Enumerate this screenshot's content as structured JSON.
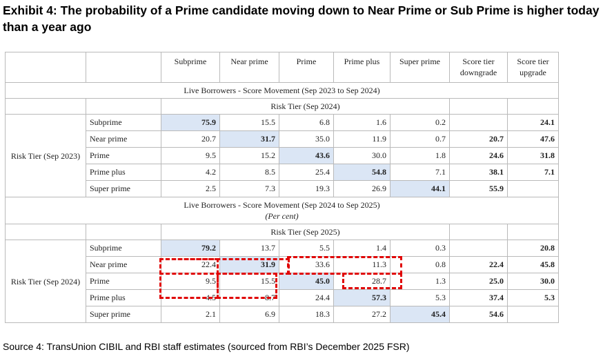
{
  "title": "Exhibit 4: The probability of a Prime candidate moving down to Near Prime or Sub Prime is higher today than a year ago",
  "columns": [
    "Subprime",
    "Near prime",
    "Prime",
    "Prime plus",
    "Super prime",
    "Score tier downgrade",
    "Score tier upgrade"
  ],
  "section1": {
    "title": "Live Borrowers - Score Movement (Sep 2023 to Sep 2024)",
    "risk_tier_cols": "Risk Tier (Sep 2024)",
    "risk_tier_rows": "Risk Tier (Sep 2023)",
    "rows": [
      {
        "label": "Subprime",
        "values": [
          "75.9",
          "15.5",
          "6.8",
          "1.6",
          "0.2"
        ],
        "downgrade": "",
        "upgrade": "24.1"
      },
      {
        "label": "Near prime",
        "values": [
          "20.7",
          "31.7",
          "35.0",
          "11.9",
          "0.7"
        ],
        "downgrade": "20.7",
        "upgrade": "47.6"
      },
      {
        "label": "Prime",
        "values": [
          "9.5",
          "15.2",
          "43.6",
          "30.0",
          "1.8"
        ],
        "downgrade": "24.6",
        "upgrade": "31.8"
      },
      {
        "label": "Prime plus",
        "values": [
          "4.2",
          "8.5",
          "25.4",
          "54.8",
          "7.1"
        ],
        "downgrade": "38.1",
        "upgrade": "7.1"
      },
      {
        "label": "Super prime",
        "values": [
          "2.5",
          "7.3",
          "19.3",
          "26.9",
          "44.1"
        ],
        "downgrade": "55.9",
        "upgrade": ""
      }
    ]
  },
  "section2": {
    "title": "Live Borrowers - Score Movement (Sep 2024 to Sep 2025)",
    "unit": "(Per cent)",
    "risk_tier_cols": "Risk Tier (Sep 2025)",
    "risk_tier_rows": "Risk Tier (Sep 2024)",
    "rows": [
      {
        "label": "Subprime",
        "values": [
          "79.2",
          "13.7",
          "5.5",
          "1.4",
          "0.3"
        ],
        "downgrade": "",
        "upgrade": "20.8"
      },
      {
        "label": "Near prime",
        "values": [
          "22.4",
          "31.9",
          "33.6",
          "11.3",
          "0.8"
        ],
        "downgrade": "22.4",
        "upgrade": "45.8"
      },
      {
        "label": "Prime",
        "values": [
          "9.5",
          "15.5",
          "45.0",
          "28.7",
          "1.3"
        ],
        "downgrade": "25.0",
        "upgrade": "30.0"
      },
      {
        "label": "Prime plus",
        "values": [
          "4.5",
          "8.7",
          "24.4",
          "57.3",
          "5.3"
        ],
        "downgrade": "37.4",
        "upgrade": "5.3"
      },
      {
        "label": "Super prime",
        "values": [
          "2.1",
          "6.9",
          "18.3",
          "27.2",
          "45.4"
        ],
        "downgrade": "54.6",
        "upgrade": ""
      }
    ]
  },
  "source": "Source 4: TransUnion CIBIL and RBI staff estimates (sourced from RBI’s December 2025 FSR)",
  "colors": {
    "diagonal": "#dbe6f5",
    "highlight": "#e00000",
    "grid": "#b9b9b9"
  }
}
